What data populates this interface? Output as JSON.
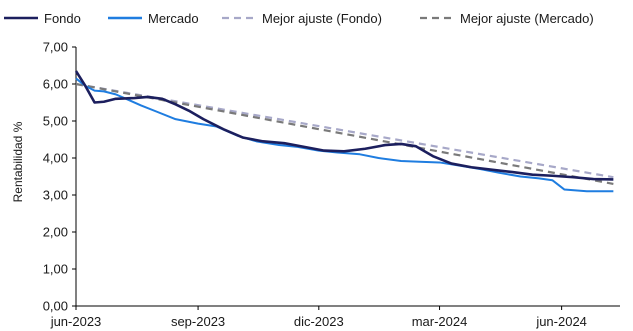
{
  "chart_data": {
    "type": "line",
    "title": "",
    "xlabel": "",
    "ylabel": "Rentabilidad %",
    "ylim": [
      0,
      7
    ],
    "yticks": [
      "0,00",
      "1,00",
      "2,00",
      "3,00",
      "4,00",
      "5,00",
      "6,00",
      "7,00"
    ],
    "xlim": [
      "2023-06-01",
      "2024-07-15"
    ],
    "xticks": [
      {
        "date": "2023-06-01",
        "label": "jun-2023"
      },
      {
        "date": "2023-09-01",
        "label": "sep-2023"
      },
      {
        "date": "2023-12-01",
        "label": "dic-2023"
      },
      {
        "date": "2024-03-01",
        "label": "mar-2024"
      },
      {
        "date": "2024-06-01",
        "label": "jun-2024"
      }
    ],
    "grid": false,
    "legend_position": "top",
    "series": [
      {
        "name": "Fondo",
        "color": "#1c1f5e",
        "style": "solid",
        "points": [
          [
            "2023-06-01",
            6.35
          ],
          [
            "2023-06-08",
            5.95
          ],
          [
            "2023-06-15",
            5.5
          ],
          [
            "2023-06-22",
            5.52
          ],
          [
            "2023-07-01",
            5.6
          ],
          [
            "2023-07-15",
            5.62
          ],
          [
            "2023-07-25",
            5.65
          ],
          [
            "2023-08-05",
            5.6
          ],
          [
            "2023-08-15",
            5.45
          ],
          [
            "2023-08-25",
            5.28
          ],
          [
            "2023-09-05",
            5.05
          ],
          [
            "2023-09-20",
            4.78
          ],
          [
            "2023-10-05",
            4.55
          ],
          [
            "2023-10-20",
            4.45
          ],
          [
            "2023-11-05",
            4.4
          ],
          [
            "2023-11-20",
            4.3
          ],
          [
            "2023-12-05",
            4.2
          ],
          [
            "2023-12-20",
            4.18
          ],
          [
            "2024-01-05",
            4.25
          ],
          [
            "2024-01-20",
            4.35
          ],
          [
            "2024-02-01",
            4.38
          ],
          [
            "2024-02-12",
            4.32
          ],
          [
            "2024-02-25",
            4.05
          ],
          [
            "2024-03-10",
            3.85
          ],
          [
            "2024-03-25",
            3.75
          ],
          [
            "2024-04-10",
            3.68
          ],
          [
            "2024-04-25",
            3.62
          ],
          [
            "2024-05-10",
            3.55
          ],
          [
            "2024-05-25",
            3.52
          ],
          [
            "2024-06-10",
            3.48
          ],
          [
            "2024-06-25",
            3.43
          ],
          [
            "2024-07-10",
            3.42
          ]
        ]
      },
      {
        "name": "Mercado",
        "color": "#1f7de0",
        "style": "solid",
        "points": [
          [
            "2023-06-01",
            6.15
          ],
          [
            "2023-06-08",
            5.95
          ],
          [
            "2023-06-15",
            5.82
          ],
          [
            "2023-06-22",
            5.8
          ],
          [
            "2023-07-01",
            5.72
          ],
          [
            "2023-07-10",
            5.58
          ],
          [
            "2023-07-20",
            5.42
          ],
          [
            "2023-08-01",
            5.25
          ],
          [
            "2023-08-15",
            5.05
          ],
          [
            "2023-09-01",
            4.93
          ],
          [
            "2023-09-15",
            4.85
          ],
          [
            "2023-10-01",
            4.6
          ],
          [
            "2023-10-15",
            4.45
          ],
          [
            "2023-11-01",
            4.35
          ],
          [
            "2023-11-15",
            4.3
          ],
          [
            "2023-12-01",
            4.2
          ],
          [
            "2023-12-15",
            4.15
          ],
          [
            "2024-01-01",
            4.1
          ],
          [
            "2024-01-15",
            4.0
          ],
          [
            "2024-02-01",
            3.92
          ],
          [
            "2024-02-15",
            3.9
          ],
          [
            "2024-03-01",
            3.88
          ],
          [
            "2024-03-15",
            3.8
          ],
          [
            "2024-04-01",
            3.7
          ],
          [
            "2024-04-15",
            3.6
          ],
          [
            "2024-05-01",
            3.5
          ],
          [
            "2024-05-15",
            3.45
          ],
          [
            "2024-05-25",
            3.4
          ],
          [
            "2024-06-03",
            3.15
          ],
          [
            "2024-06-20",
            3.1
          ],
          [
            "2024-07-10",
            3.1
          ]
        ]
      },
      {
        "name": "Mejor ajuste (Fondo)",
        "color": "#a7a8c8",
        "style": "dashed",
        "points": [
          [
            "2023-06-01",
            6.0
          ],
          [
            "2024-07-10",
            3.48
          ]
        ]
      },
      {
        "name": "Mejor ajuste (Mercado)",
        "color": "#7a7a7a",
        "style": "dashed",
        "points": [
          [
            "2023-06-01",
            6.0
          ],
          [
            "2024-07-10",
            3.3
          ]
        ]
      }
    ]
  }
}
